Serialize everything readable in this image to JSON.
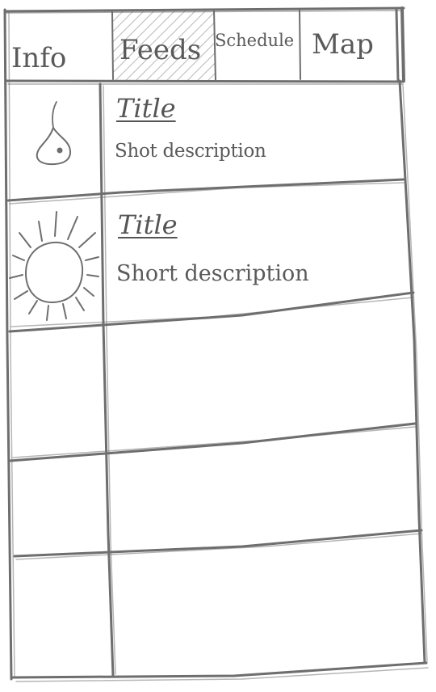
{
  "tabs": [
    {
      "label": "Info",
      "selected": false
    },
    {
      "label": "Feeds",
      "selected": true
    },
    {
      "label": "Schedule",
      "selected": false
    },
    {
      "label": "Map",
      "selected": false
    }
  ],
  "list": {
    "items": [
      {
        "icon": "pear-icon",
        "title": "Title",
        "description": "Shot description"
      },
      {
        "icon": "sun-icon",
        "title": "Title",
        "description": "Short description"
      },
      {
        "icon": "",
        "title": "",
        "description": ""
      },
      {
        "icon": "",
        "title": "",
        "description": ""
      },
      {
        "icon": "",
        "title": "",
        "description": ""
      }
    ]
  },
  "colors": {
    "pencil": "#6b6b6b",
    "hatch": "#b5b5b5",
    "background": "#ffffff"
  }
}
